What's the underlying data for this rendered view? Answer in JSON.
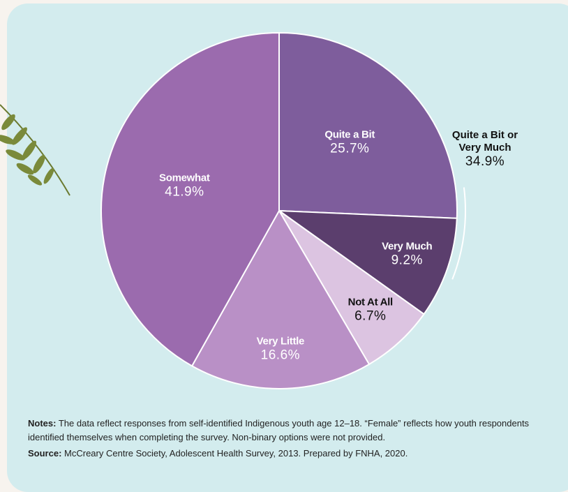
{
  "chart_data": {
    "type": "pie",
    "categories": [
      "Quite a Bit",
      "Very Much",
      "Not At All",
      "Very Little",
      "Somewhat"
    ],
    "values": [
      25.7,
      9.2,
      6.7,
      16.6,
      41.9
    ],
    "value_labels": [
      "25.7%",
      "9.2%",
      "6.7%",
      "16.6%",
      "41.9%"
    ],
    "colors": [
      "#7e5d9c",
      "#5b3e6d",
      "#dcc4e1",
      "#b990c6",
      "#9b6bae"
    ],
    "label_colors": [
      "#ffffff",
      "#ffffff",
      "#111111",
      "#ffffff",
      "#ffffff"
    ],
    "annotations": [
      {
        "text": "Quite a Bit or Very Much",
        "value": 34.9,
        "label": "34.9%"
      }
    ]
  },
  "notes": {
    "label": "Notes:",
    "text": "The data reflect responses from self-identified Indigenous youth age 12–18. “Female” reflects how youth respondents identified themselves when completing the survey. Non-binary options were not provided."
  },
  "source": {
    "label": "Source:",
    "text": "McCreary Centre Society, Adolescent Health Survey, 2013. Prepared by FNHA, 2020."
  }
}
